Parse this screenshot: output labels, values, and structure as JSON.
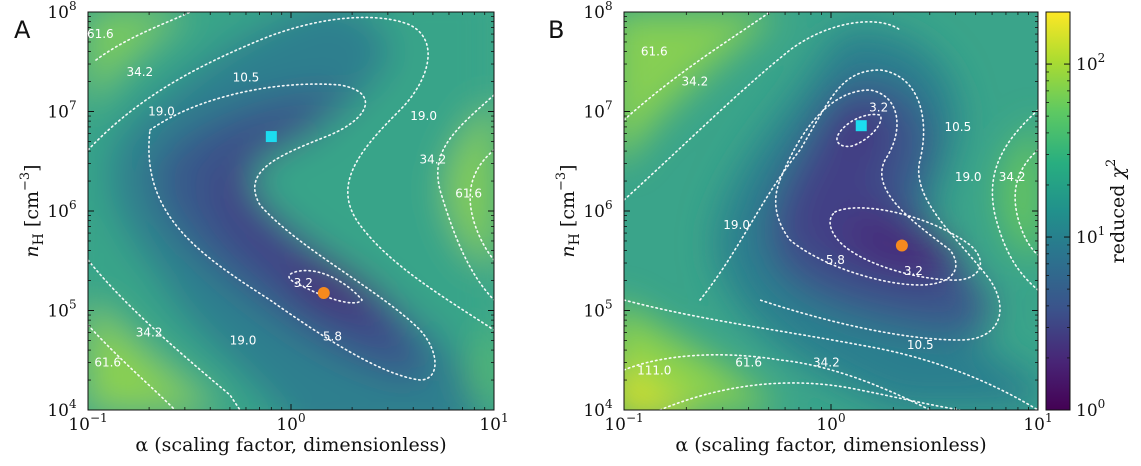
{
  "chart_data": [
    {
      "type": "heatmap",
      "panel_label": "A",
      "xlabel": "α (scaling factor, dimensionless)",
      "ylabel": "n_H [cm^-3]",
      "xscale": "log",
      "yscale": "log",
      "xlim": [
        0.1,
        10
      ],
      "ylim": [
        10000,
        100000000
      ],
      "x_ticks": [
        {
          "value": 0.1,
          "base": "10",
          "exp": "−1"
        },
        {
          "value": 1,
          "base": "10",
          "exp": "0"
        },
        {
          "value": 10,
          "base": "10",
          "exp": "1"
        }
      ],
      "y_ticks": [
        {
          "value": 10000,
          "base": "10",
          "exp": "4"
        },
        {
          "value": 100000,
          "base": "10",
          "exp": "5"
        },
        {
          "value": 1000000,
          "base": "10",
          "exp": "6"
        },
        {
          "value": 10000000,
          "base": "10",
          "exp": "7"
        },
        {
          "value": 100000000,
          "base": "10",
          "exp": "8"
        }
      ],
      "contour_levels": [
        "3.2",
        "5.8",
        "10.5",
        "19.0",
        "34.2",
        "61.6"
      ],
      "contour_labels": [
        {
          "text": "61.6",
          "x": 0.115,
          "y": 60000000
        },
        {
          "text": "34.2",
          "x": 0.18,
          "y": 25000000
        },
        {
          "text": "10.5",
          "x": 0.6,
          "y": 22000000
        },
        {
          "text": "19.0",
          "x": 0.23,
          "y": 10000000
        },
        {
          "text": "19.0",
          "x": 4.5,
          "y": 9000000
        },
        {
          "text": "34.2",
          "x": 5.0,
          "y": 3300000
        },
        {
          "text": "61.6",
          "x": 7.5,
          "y": 1500000
        },
        {
          "text": "3.2",
          "x": 1.15,
          "y": 190000
        },
        {
          "text": "5.8",
          "x": 1.6,
          "y": 55000
        },
        {
          "text": "34.2",
          "x": 0.2,
          "y": 60000
        },
        {
          "text": "19.0",
          "x": 0.58,
          "y": 50000
        },
        {
          "text": "61.6",
          "x": 0.125,
          "y": 30000
        }
      ],
      "markers": [
        {
          "shape": "square",
          "color": "#1cdcf0",
          "x": 0.8,
          "y": 5600000
        },
        {
          "shape": "circle",
          "color": "#f58a1e",
          "x": 1.45,
          "y": 150000
        }
      ]
    },
    {
      "type": "heatmap",
      "panel_label": "B",
      "xlabel": "α (scaling factor, dimensionless)",
      "ylabel": "n_H [cm^-3]",
      "xscale": "log",
      "yscale": "log",
      "xlim": [
        0.1,
        10
      ],
      "ylim": [
        10000,
        100000000
      ],
      "x_ticks": [
        {
          "value": 0.1,
          "base": "10",
          "exp": "−1"
        },
        {
          "value": 1,
          "base": "10",
          "exp": "0"
        },
        {
          "value": 10,
          "base": "10",
          "exp": "1"
        }
      ],
      "y_ticks": [
        {
          "value": 10000,
          "base": "10",
          "exp": "4"
        },
        {
          "value": 100000,
          "base": "10",
          "exp": "5"
        },
        {
          "value": 1000000,
          "base": "10",
          "exp": "6"
        },
        {
          "value": 10000000,
          "base": "10",
          "exp": "7"
        },
        {
          "value": 100000000,
          "base": "10",
          "exp": "8"
        }
      ],
      "contour_levels": [
        "3.2",
        "5.8",
        "10.5",
        "19.0",
        "34.2",
        "61.6",
        "111.0"
      ],
      "contour_labels": [
        {
          "text": "61.6",
          "x": 0.14,
          "y": 40000000
        },
        {
          "text": "34.2",
          "x": 0.22,
          "y": 20000000
        },
        {
          "text": "3.2",
          "x": 1.7,
          "y": 11000000
        },
        {
          "text": "10.5",
          "x": 4.1,
          "y": 7000000
        },
        {
          "text": "19.0",
          "x": 4.6,
          "y": 2200000
        },
        {
          "text": "34.2",
          "x": 7.5,
          "y": 2200000
        },
        {
          "text": "19.0",
          "x": 0.35,
          "y": 720000
        },
        {
          "text": "5.8",
          "x": 1.05,
          "y": 320000
        },
        {
          "text": "3.2",
          "x": 2.5,
          "y": 250000
        },
        {
          "text": "111.0",
          "x": 0.14,
          "y": 25000
        },
        {
          "text": "61.6",
          "x": 0.4,
          "y": 30000
        },
        {
          "text": "34.2",
          "x": 0.95,
          "y": 30000
        },
        {
          "text": "10.5",
          "x": 2.7,
          "y": 45000
        }
      ],
      "markers": [
        {
          "shape": "square",
          "color": "#1cdcf0",
          "x": 1.4,
          "y": 7200000
        },
        {
          "shape": "circle",
          "color": "#f58a1e",
          "x": 2.2,
          "y": 450000
        }
      ],
      "colorbar": {
        "label": "reduced χ²",
        "scale": "log",
        "range": [
          1,
          200
        ],
        "colormap": "viridis",
        "ticks": [
          {
            "value": 1,
            "base": "10",
            "exp": "0"
          },
          {
            "value": 10,
            "base": "10",
            "exp": "1"
          },
          {
            "value": 100,
            "base": "10",
            "exp": "2"
          }
        ]
      }
    }
  ]
}
